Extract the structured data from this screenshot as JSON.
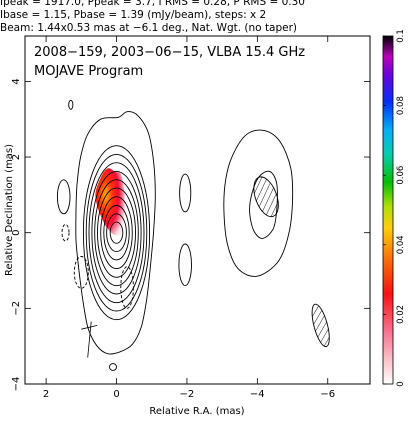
{
  "header": {
    "line1": "Ipeak = 1917.0, Ppeak = 3.7, I RMS = 0.28, P RMS = 0.30",
    "line2": "Ibase = 1.15, Pbase = 1.39 (mJy/beam), steps: x 2",
    "line3": "Beam: 1.44x0.53 mas at −6.1 deg., Nat. Wgt. (no taper)"
  },
  "chart_data": {
    "type": "heatmap",
    "title": "",
    "annotations": [
      "2008−159, 2003−06−15, VLBA 15.4 GHz",
      "MOJAVE Program"
    ],
    "xlabel": "Relative R.A. (mas)",
    "ylabel": "Relative Declination (mas)",
    "xlim": [
      2.6,
      -7.2
    ],
    "ylim": [
      -4,
      5.2
    ],
    "x_ticks": [
      2,
      0,
      -2,
      -4,
      -6
    ],
    "x_tick_labels": [
      "2",
      "0",
      "−2",
      "−4",
      "−6"
    ],
    "y_ticks": [
      -4,
      -2,
      0,
      2,
      4
    ],
    "y_tick_labels": [
      "−4",
      "−2",
      "0",
      "2",
      "4"
    ],
    "grid": false,
    "colorbar": {
      "range": [
        0,
        0.1
      ],
      "ticks": [
        0,
        0.02,
        0.04,
        0.06,
        0.08,
        0.1
      ],
      "tick_labels": [
        "0",
        "0.02",
        "0.04",
        "0.06",
        "0.08",
        "0.1"
      ]
    },
    "contours_core": {
      "center": [
        0,
        0
      ],
      "levels": [
        {
          "a": 0.18,
          "b": 0.28
        },
        {
          "a": 0.28,
          "b": 0.5
        },
        {
          "a": 0.36,
          "b": 0.72
        },
        {
          "a": 0.45,
          "b": 0.95
        },
        {
          "a": 0.54,
          "b": 1.18
        },
        {
          "a": 0.62,
          "b": 1.4
        },
        {
          "a": 0.7,
          "b": 1.62
        },
        {
          "a": 0.78,
          "b": 1.85
        },
        {
          "a": 0.86,
          "b": 2.07
        },
        {
          "a": 0.94,
          "b": 2.3
        }
      ]
    },
    "outer_contour": [
      [
        -0.05,
        3.05
      ],
      [
        -0.3,
        3.2
      ],
      [
        -0.6,
        3.1
      ],
      [
        -0.9,
        2.65
      ],
      [
        -1.05,
        1.9
      ],
      [
        -1.1,
        1.0
      ],
      [
        -1.05,
        0.0
      ],
      [
        -0.95,
        -1.0
      ],
      [
        -0.85,
        -1.8
      ],
      [
        -0.7,
        -2.5
      ],
      [
        -0.45,
        -2.95
      ],
      [
        -0.1,
        -3.15
      ],
      [
        0.25,
        -3.2
      ],
      [
        0.55,
        -3.0
      ],
      [
        0.8,
        -2.55
      ],
      [
        0.92,
        -2.0
      ],
      [
        1.0,
        -1.5
      ],
      [
        1.08,
        -0.9
      ],
      [
        1.15,
        -0.2
      ],
      [
        1.15,
        0.6
      ],
      [
        1.12,
        1.3
      ],
      [
        1.02,
        2.0
      ],
      [
        0.82,
        2.6
      ],
      [
        0.45,
        3.0
      ]
    ],
    "secondary_contour": [
      [
        -3.3,
        2.05
      ],
      [
        -3.7,
        2.6
      ],
      [
        -4.2,
        2.7
      ],
      [
        -4.65,
        2.4
      ],
      [
        -4.95,
        1.7
      ],
      [
        -5.0,
        0.9
      ],
      [
        -4.9,
        0.0
      ],
      [
        -4.6,
        -0.75
      ],
      [
        -4.0,
        -1.15
      ],
      [
        -3.45,
        -0.95
      ],
      [
        -3.15,
        -0.3
      ],
      [
        -3.05,
        0.6
      ],
      [
        -3.1,
        1.4
      ]
    ],
    "component_contour": [
      [
        -3.85,
        1.05
      ],
      [
        -4.05,
        1.48
      ],
      [
        -4.35,
        1.62
      ],
      [
        -4.55,
        1.3
      ],
      [
        -4.55,
        0.6
      ],
      [
        -4.45,
        0.1
      ],
      [
        -4.15,
        -0.15
      ],
      [
        -3.9,
        0.05
      ],
      [
        -3.78,
        0.55
      ]
    ],
    "small_islands": [
      {
        "x": -1.95,
        "y": 1.05,
        "rx": 0.16,
        "ry": 0.5
      },
      {
        "x": -1.95,
        "y": -0.85,
        "rx": 0.18,
        "ry": 0.55
      },
      {
        "x": 1.5,
        "y": 0.95,
        "rx": 0.18,
        "ry": 0.45
      },
      {
        "x": 1.3,
        "y": 3.38,
        "rx": 0.06,
        "ry": 0.12
      },
      {
        "x": 0.1,
        "y": -3.55,
        "rx": 0.1,
        "ry": 0.09
      }
    ],
    "negative_contours": [
      {
        "x": 1.45,
        "y": 0.0,
        "rx": 0.1,
        "ry": 0.22
      },
      {
        "x": 1.0,
        "y": -1.05,
        "rx": 0.2,
        "ry": 0.42
      },
      {
        "x": -0.3,
        "y": -1.45,
        "rx": 0.18,
        "ry": 0.55
      }
    ],
    "hatched_regions": [
      {
        "x": -4.25,
        "y": 0.95,
        "rx": 0.3,
        "ry": 0.55,
        "rot": -20
      },
      {
        "x": -5.8,
        "y": -2.45,
        "rx": 0.19,
        "ry": 0.58,
        "rot": -15
      }
    ],
    "polarized_core": {
      "points": [
        [
          0.02,
          1.6
        ],
        [
          -0.12,
          1.55
        ],
        [
          -0.22,
          1.1
        ],
        [
          -0.22,
          0.4
        ],
        [
          -0.12,
          0.0
        ],
        [
          0.08,
          -0.05
        ],
        [
          0.38,
          0.3
        ],
        [
          0.6,
          0.95
        ],
        [
          0.45,
          1.45
        ],
        [
          0.25,
          1.7
        ]
      ],
      "peak_value": 0.035
    },
    "evpa_ticks": [
      {
        "x1": 1.0,
        "y1": -2.55,
        "x2": 0.55,
        "y2": -2.45
      },
      {
        "x1": 0.72,
        "y1": -2.35,
        "x2": 0.82,
        "y2": -3.3
      }
    ]
  }
}
